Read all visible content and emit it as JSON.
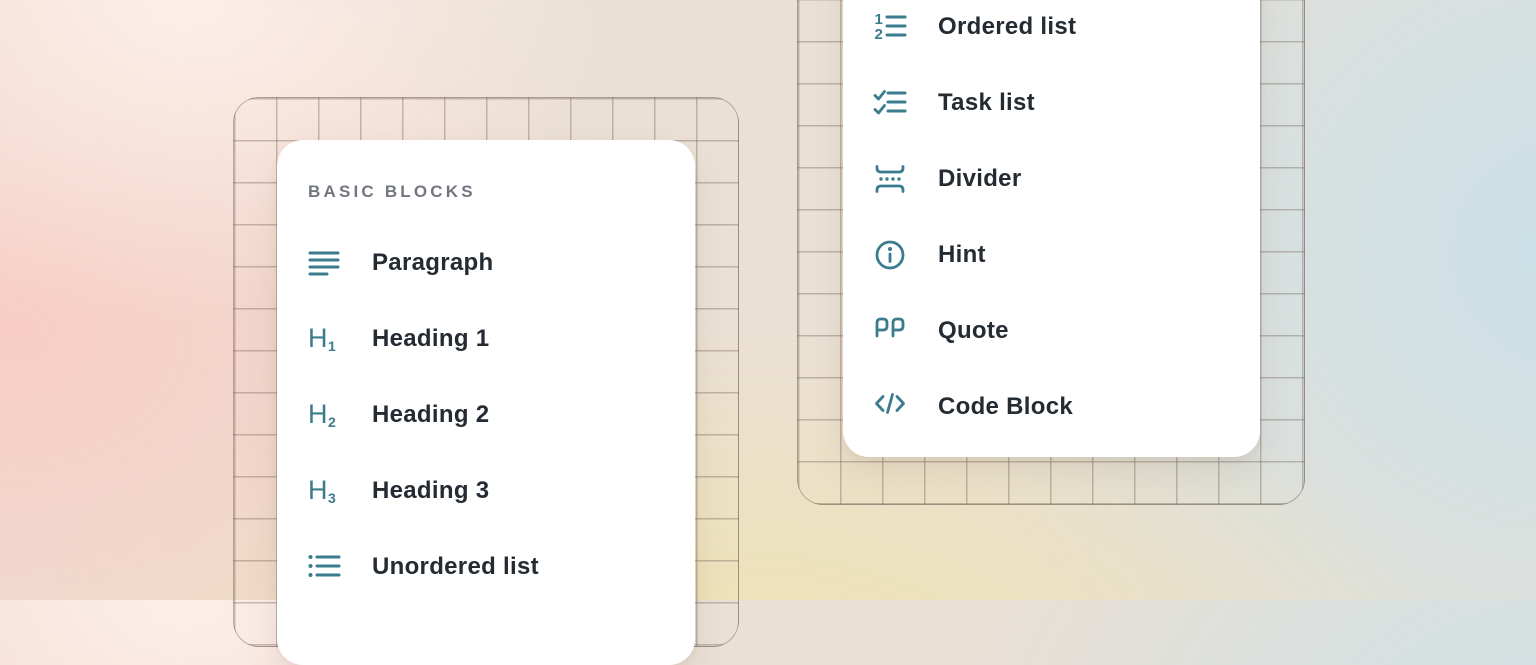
{
  "colors": {
    "icon_accent": "#3a7c8e",
    "label_text": "#242b33",
    "section_title_text": "#71767f",
    "card_background": "#ffffff",
    "bg_pink": "#f8cec4",
    "bg_yellow": "#efe3ae",
    "bg_blue": "#c9e0e8"
  },
  "panels": {
    "basic_blocks": {
      "title": "BASIC BLOCKS",
      "items": [
        {
          "label": "Paragraph",
          "icon": "paragraph-icon"
        },
        {
          "label": "Heading 1",
          "icon": "heading-1-icon"
        },
        {
          "label": "Heading 2",
          "icon": "heading-2-icon"
        },
        {
          "label": "Heading 3",
          "icon": "heading-3-icon"
        },
        {
          "label": "Unordered list",
          "icon": "unordered-list-icon"
        }
      ]
    },
    "more_blocks": {
      "items": [
        {
          "label": "Ordered list",
          "icon": "ordered-list-icon"
        },
        {
          "label": "Task list",
          "icon": "task-list-icon"
        },
        {
          "label": "Divider",
          "icon": "divider-icon"
        },
        {
          "label": "Hint",
          "icon": "hint-icon"
        },
        {
          "label": "Quote",
          "icon": "quote-icon"
        },
        {
          "label": "Code Block",
          "icon": "code-block-icon"
        }
      ]
    }
  }
}
